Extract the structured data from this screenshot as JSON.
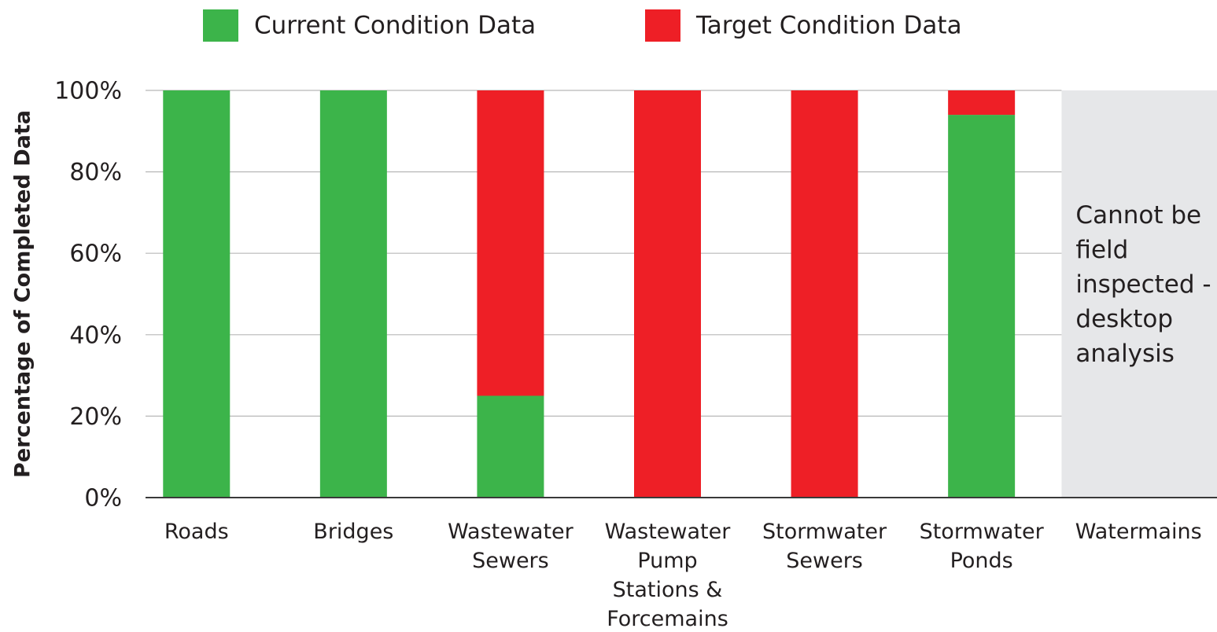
{
  "chart_data": {
    "type": "stacked_bar",
    "ylabel": "Percentage of Completed Data",
    "categories": [
      "Roads",
      "Bridges",
      "Wastewater Sewers",
      "Wastewater Pump Stations & Forcemains",
      "Stormwater Sewers",
      "Stormwater Ponds",
      "Watermains"
    ],
    "series": [
      {
        "name": "Current Condition Data",
        "color": "#3cb44a",
        "values": [
          100,
          100,
          25,
          0,
          0,
          94,
          null
        ]
      },
      {
        "name": "Target Condition Data",
        "color": "#ee1f26",
        "values": [
          0,
          0,
          75,
          100,
          100,
          6,
          null
        ]
      }
    ],
    "ylim": [
      0,
      100
    ],
    "yticks": [
      {
        "value": 0,
        "label": "0%"
      },
      {
        "value": 20,
        "label": "20%"
      },
      {
        "value": 40,
        "label": "40%"
      },
      {
        "value": 60,
        "label": "60%"
      },
      {
        "value": 80,
        "label": "80%"
      },
      {
        "value": 100,
        "label": "100%"
      }
    ],
    "grid": true,
    "legend": "top",
    "annotation": "Cannot be field inspected - desktop analysis",
    "missing_color": "#e6e7e9"
  }
}
